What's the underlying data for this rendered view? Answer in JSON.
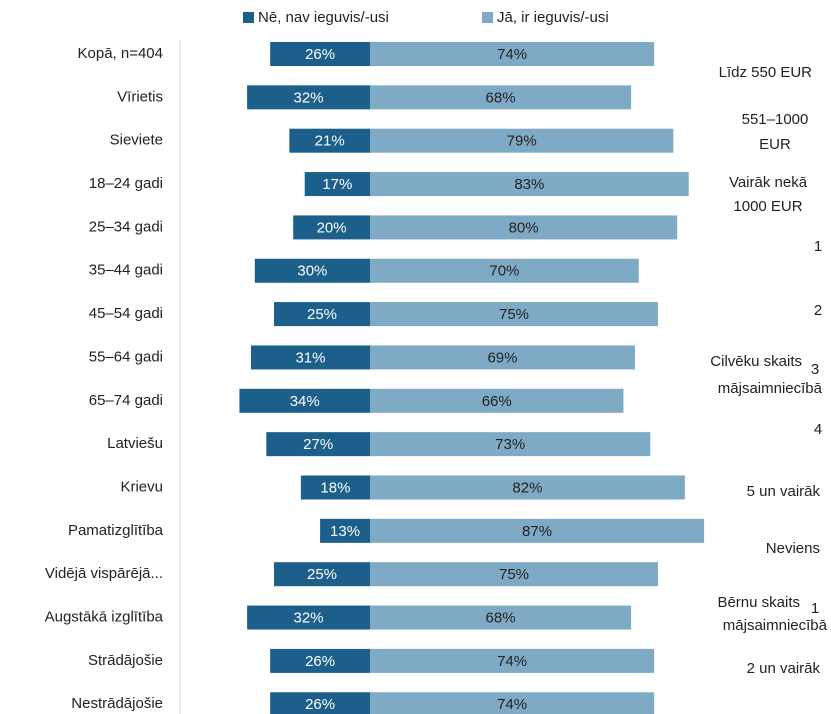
{
  "chart_data": {
    "type": "diverging_bar",
    "categories": [
      "Kopā, n=404",
      "Vīrietis",
      "Sieviete",
      "18–24 gadi",
      "25–34 gadi",
      "35–44 gadi",
      "45–54 gadi",
      "55–64 gadi",
      "65–74 gadi",
      "Latviešu",
      "Krievu",
      "Pamatizglītība",
      "Vidējā vispārējā...",
      "Augstākā izglītība",
      "Strādājošie",
      "Nestrādājošie"
    ],
    "series": [
      {
        "name": "Nē, nav ieguvis/-usi",
        "color": "#1c5f8b",
        "values": [
          26,
          32,
          21,
          17,
          20,
          30,
          25,
          31,
          34,
          27,
          18,
          13,
          25,
          32,
          26,
          26
        ],
        "value_labels": [
          "26%",
          "32%",
          "21%",
          "17%",
          "20%",
          "30%",
          "25%",
          "31%",
          "34%",
          "27%",
          "18%",
          "13%",
          "25%",
          "32%",
          "26%",
          "26%"
        ]
      },
      {
        "name": "Jā, ir ieguvis/-usi",
        "color": "#7eaac6",
        "values": [
          74,
          68,
          79,
          83,
          80,
          70,
          75,
          69,
          66,
          73,
          82,
          87,
          75,
          68,
          74,
          74
        ],
        "value_labels": [
          "74%",
          "68%",
          "79%",
          "83%",
          "80%",
          "70%",
          "75%",
          "69%",
          "66%",
          "73%",
          "82%",
          "87%",
          "75%",
          "68%",
          "74%",
          "74%"
        ]
      }
    ],
    "annotations": [
      "Līdz 550 EUR",
      "551–1000",
      "EUR",
      "Vairāk nekā",
      "1000 EUR",
      "1",
      "2",
      "Cilvēku skaits",
      "3",
      "mājsaimniecībā",
      "4",
      "5 un vairāk",
      "Neviens",
      "Bērnu skaits",
      "1",
      "mājsaimniecībā",
      "2 un vairāk"
    ]
  }
}
